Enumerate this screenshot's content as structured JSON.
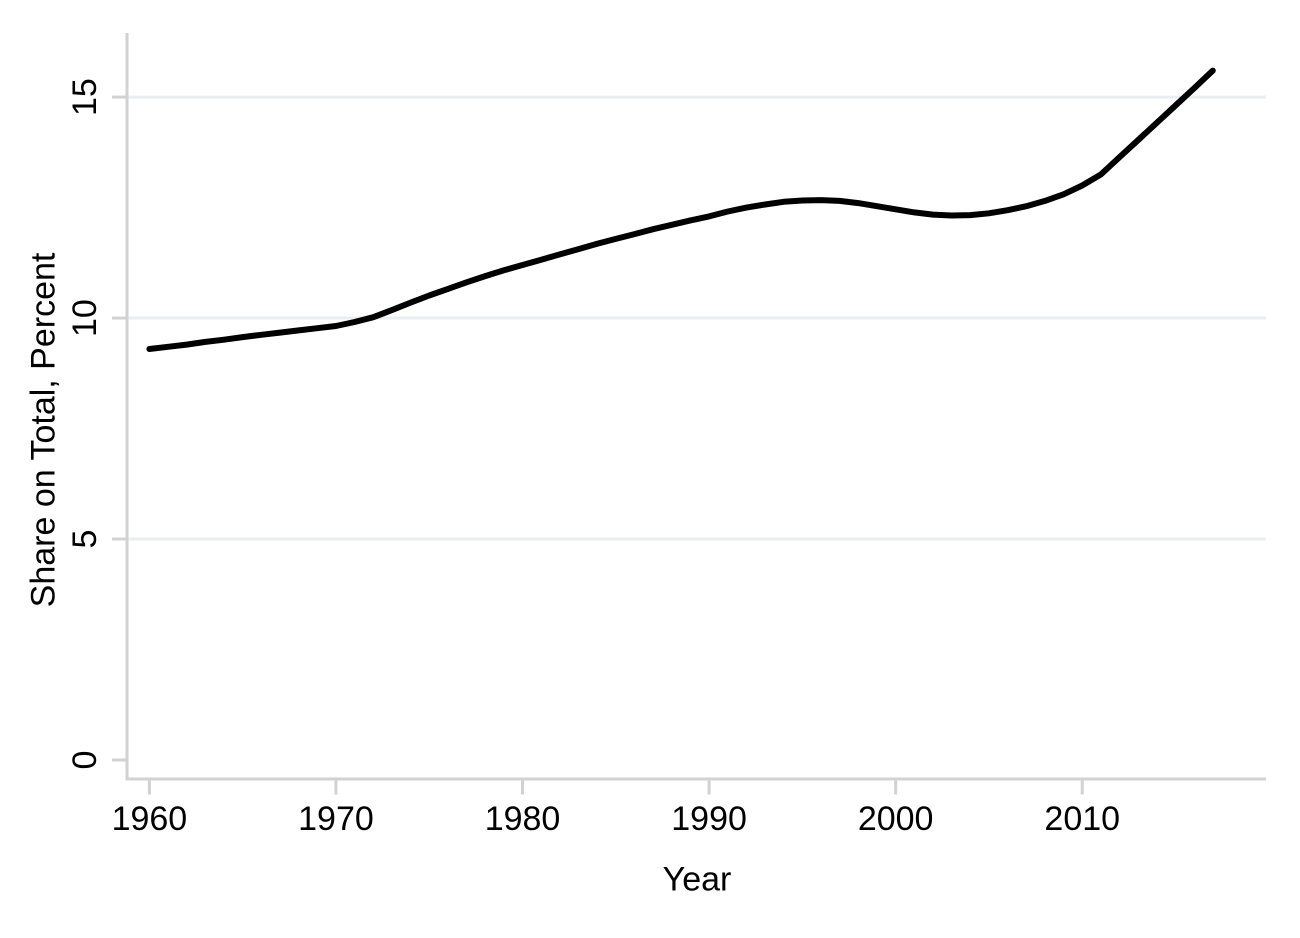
{
  "chart_data": {
    "type": "line",
    "title": "",
    "xlabel": "Year",
    "ylabel": "Share on Total, Percent",
    "legend": "none",
    "grid": "horizontal",
    "x_ticks": [
      1960,
      1970,
      1980,
      1990,
      2000,
      2010
    ],
    "y_ticks": [
      0,
      5,
      10,
      15
    ],
    "y_gridlines": [
      5,
      10,
      15
    ],
    "xlim": [
      1958.8,
      2019.85
    ],
    "ylim": [
      -0.43,
      16.45
    ],
    "colors": {
      "line": "#000000",
      "grid": "#e8eef2",
      "axis": "#d2d2d2",
      "text": "#000000",
      "background": "#ffffff"
    },
    "x": [
      1960,
      1961,
      1962,
      1963,
      1964,
      1965,
      1966,
      1967,
      1968,
      1969,
      1970,
      1971,
      1972,
      1973,
      1974,
      1975,
      1976,
      1977,
      1978,
      1979,
      1980,
      1981,
      1982,
      1983,
      1984,
      1985,
      1986,
      1987,
      1988,
      1989,
      1990,
      1991,
      1992,
      1993,
      1994,
      1995,
      1996,
      1997,
      1998,
      1999,
      2000,
      2001,
      2002,
      2003,
      2004,
      2005,
      2006,
      2007,
      2008,
      2009,
      2010,
      2011,
      2012,
      2013,
      2014,
      2015,
      2016,
      2017
    ],
    "values": [
      9.3,
      9.35,
      9.4,
      9.46,
      9.51,
      9.57,
      9.62,
      9.67,
      9.72,
      9.77,
      9.82,
      9.91,
      10.02,
      10.18,
      10.35,
      10.51,
      10.66,
      10.81,
      10.95,
      11.08,
      11.2,
      11.32,
      11.44,
      11.56,
      11.68,
      11.79,
      11.9,
      12.01,
      12.11,
      12.21,
      12.3,
      12.41,
      12.5,
      12.57,
      12.63,
      12.66,
      12.67,
      12.65,
      12.6,
      12.53,
      12.46,
      12.39,
      12.34,
      12.32,
      12.33,
      12.37,
      12.44,
      12.53,
      12.65,
      12.8,
      13.0,
      13.25,
      13.64,
      14.03,
      14.42,
      14.81,
      15.2,
      15.6
    ]
  }
}
